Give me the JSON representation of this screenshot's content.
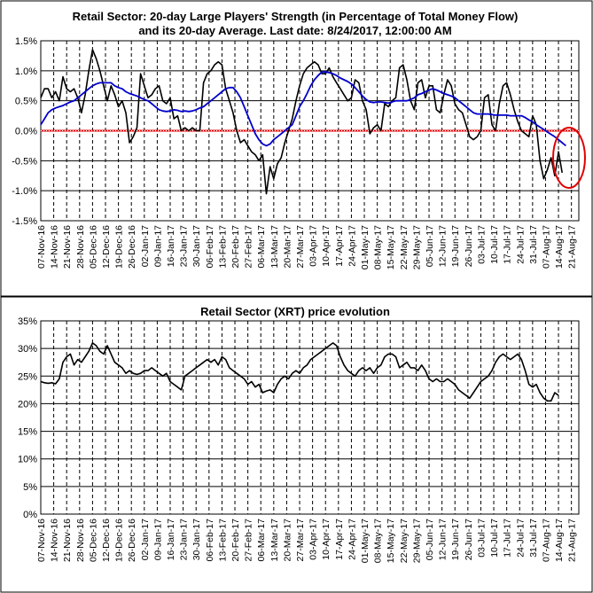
{
  "chart_data": [
    {
      "type": "line",
      "title": "Retail Sector: 20-day Large Players' Strength (in Percentage of Total Money Flow)",
      "subtitle": "and its 20-day Average. Last date: 8/24/2017, 12:00:00 AM",
      "ylim": [
        -1.5,
        1.5
      ],
      "yticks": [
        "-1.5%",
        "-1.0%",
        "-0.5%",
        "0.0%",
        "0.5%",
        "1.0%",
        "1.5%"
      ],
      "ytick_values": [
        -1.5,
        -1.0,
        -0.5,
        0.0,
        0.5,
        1.0,
        1.5
      ],
      "grid": true,
      "zero_line_color": "#e00000",
      "highlight_circle_color": "#e00000",
      "x_day_offsets": [
        0,
        2,
        4,
        6,
        8,
        10,
        12,
        14,
        16,
        18,
        20,
        22,
        24,
        26,
        28,
        30,
        32,
        34,
        36,
        38,
        40,
        42,
        44,
        46,
        48,
        50,
        52,
        54,
        56,
        58,
        60,
        62,
        64,
        66,
        68,
        70,
        72,
        74,
        76,
        78,
        80,
        82,
        84,
        86,
        88,
        90,
        92,
        94,
        96,
        98,
        100,
        102,
        104,
        106,
        108,
        110,
        112,
        114,
        116,
        118,
        120,
        122,
        124,
        126,
        128,
        130,
        132,
        134,
        136,
        138,
        140,
        142,
        144,
        146,
        148,
        150,
        152,
        154,
        156,
        158,
        160,
        162,
        164,
        166,
        168,
        170,
        172,
        174,
        176,
        178,
        180,
        182,
        184,
        186,
        188,
        190,
        192,
        194,
        196,
        198,
        200,
        202,
        204,
        206,
        208,
        210,
        212,
        214,
        216,
        218,
        220,
        222,
        224,
        226,
        228,
        230,
        232,
        234,
        236,
        238,
        240,
        242,
        244,
        246,
        248,
        250,
        252,
        254,
        256,
        258,
        260,
        262,
        264,
        266,
        268,
        270,
        272,
        274,
        276,
        278,
        280,
        282,
        284,
        286,
        288,
        290
      ],
      "series": [
        {
          "color": "#000000",
          "values": [
            0.55,
            0.7,
            0.7,
            0.55,
            0.65,
            0.5,
            0.9,
            0.7,
            0.65,
            0.7,
            0.55,
            0.3,
            0.6,
            1.0,
            1.35,
            1.2,
            1.0,
            0.75,
            0.5,
            0.75,
            0.6,
            0.4,
            0.5,
            0.3,
            -0.2,
            -0.1,
            0.05,
            0.95,
            0.75,
            0.55,
            0.6,
            0.7,
            0.75,
            0.5,
            0.45,
            0.55,
            0.2,
            0.25,
            0.0,
            0.05,
            0.0,
            0.05,
            0.0,
            0.0,
            0.8,
            0.95,
            1.0,
            1.1,
            1.15,
            1.1,
            0.7,
            0.5,
            0.3,
            0.0,
            -0.2,
            -0.15,
            -0.25,
            -0.35,
            -0.4,
            -0.5,
            -0.4,
            -1.05,
            -0.6,
            -0.8,
            -0.55,
            -0.45,
            -0.2,
            0.0,
            0.2,
            0.5,
            0.75,
            0.95,
            1.05,
            1.1,
            1.15,
            1.1,
            0.95,
            0.95,
            1.05,
            0.9,
            0.8,
            0.7,
            0.6,
            0.5,
            0.55,
            0.85,
            0.8,
            0.5,
            0.35,
            -0.05,
            0.05,
            0.1,
            0.0,
            0.45,
            0.4,
            0.5,
            0.55,
            1.05,
            1.1,
            0.85,
            0.5,
            0.35,
            0.8,
            0.85,
            0.55,
            0.75,
            0.75,
            0.35,
            0.3,
            0.6,
            0.85,
            0.75,
            0.45,
            0.35,
            0.3,
            0.1,
            -0.1,
            -0.15,
            -0.1,
            0.0,
            0.55,
            0.6,
            0.1,
            0.0,
            0.45,
            0.75,
            0.8,
            0.6,
            0.35,
            0.15,
            0.0,
            -0.05,
            -0.1,
            0.25,
            0.1,
            -0.5,
            -0.8,
            -0.65,
            -0.45,
            -0.75,
            -0.35,
            -0.7
          ]
        },
        {
          "color": "#0000cc",
          "values": [
            0.1,
            0.2,
            0.3,
            0.35,
            0.38,
            0.4,
            0.42,
            0.45,
            0.48,
            0.5,
            0.55,
            0.6,
            0.65,
            0.7,
            0.75,
            0.78,
            0.8,
            0.8,
            0.8,
            0.8,
            0.75,
            0.72,
            0.7,
            0.65,
            0.62,
            0.6,
            0.58,
            0.55,
            0.52,
            0.5,
            0.45,
            0.4,
            0.35,
            0.33,
            0.32,
            0.33,
            0.35,
            0.34,
            0.32,
            0.33,
            0.32,
            0.33,
            0.35,
            0.38,
            0.4,
            0.45,
            0.5,
            0.55,
            0.6,
            0.65,
            0.7,
            0.72,
            0.72,
            0.65,
            0.55,
            0.4,
            0.25,
            0.1,
            -0.05,
            -0.15,
            -0.22,
            -0.25,
            -0.22,
            -0.15,
            -0.1,
            -0.05,
            0.0,
            0.05,
            0.1,
            0.25,
            0.4,
            0.5,
            0.62,
            0.75,
            0.85,
            0.92,
            0.98,
            0.98,
            0.97,
            0.95,
            0.92,
            0.88,
            0.85,
            0.82,
            0.78,
            0.72,
            0.65,
            0.58,
            0.52,
            0.48,
            0.47,
            0.48,
            0.48,
            0.47,
            0.46,
            0.48,
            0.5,
            0.5,
            0.5,
            0.5,
            0.52,
            0.55,
            0.6,
            0.62,
            0.65,
            0.68,
            0.7,
            0.68,
            0.65,
            0.62,
            0.6,
            0.58,
            0.55,
            0.5,
            0.45,
            0.4,
            0.35,
            0.3,
            0.28,
            0.28,
            0.28,
            0.28,
            0.27,
            0.26,
            0.26,
            0.26,
            0.26,
            0.25,
            0.25,
            0.25,
            0.25,
            0.22,
            0.18,
            0.15,
            0.1,
            0.06,
            0.02,
            -0.02,
            -0.06,
            -0.1,
            -0.15,
            -0.2,
            -0.25
          ]
        }
      ]
    },
    {
      "type": "line",
      "title": "Retail Sector (XRT) price evolution",
      "ylim": [
        0,
        35
      ],
      "yticks": [
        "0%",
        "5%",
        "10%",
        "15%",
        "20%",
        "25%",
        "30%",
        "35%"
      ],
      "ytick_values": [
        0,
        5,
        10,
        15,
        20,
        25,
        30,
        35
      ],
      "grid": true,
      "x_day_offsets": [
        0,
        2,
        4,
        6,
        8,
        10,
        12,
        14,
        16,
        18,
        20,
        22,
        24,
        26,
        28,
        30,
        32,
        34,
        36,
        38,
        40,
        42,
        44,
        46,
        48,
        50,
        52,
        54,
        56,
        58,
        60,
        62,
        64,
        66,
        68,
        70,
        72,
        74,
        76,
        78,
        80,
        82,
        84,
        86,
        88,
        90,
        92,
        94,
        96,
        98,
        100,
        102,
        104,
        106,
        108,
        110,
        112,
        114,
        116,
        118,
        120,
        122,
        124,
        126,
        128,
        130,
        132,
        134,
        136,
        138,
        140,
        142,
        144,
        146,
        148,
        150,
        152,
        154,
        156,
        158,
        160,
        162,
        164,
        166,
        168,
        170,
        172,
        174,
        176,
        178,
        180,
        182,
        184,
        186,
        188,
        190,
        192,
        194,
        196,
        198,
        200,
        202,
        204,
        206,
        208,
        210,
        212,
        214,
        216,
        218,
        220,
        222,
        224,
        226,
        228,
        230,
        232,
        234,
        236,
        238,
        240,
        242,
        244,
        246,
        248,
        250,
        252,
        254,
        256,
        258,
        260,
        262,
        264,
        266,
        268,
        270,
        272,
        274,
        276,
        278,
        280,
        282,
        284,
        286,
        288,
        290
      ],
      "series": [
        {
          "color": "#000000",
          "values": [
            24.0,
            23.8,
            23.7,
            23.8,
            23.6,
            24.5,
            27.5,
            28.5,
            29.0,
            27.0,
            28.0,
            27.5,
            28.5,
            29.5,
            31.0,
            30.5,
            29.5,
            29.0,
            30.5,
            29.0,
            27.5,
            27.0,
            26.5,
            25.5,
            26.0,
            25.5,
            25.3,
            25.5,
            26.0,
            26.0,
            26.5,
            26.0,
            25.5,
            25.0,
            25.5,
            24.0,
            23.5,
            23.0,
            22.5,
            25.0,
            25.5,
            26.0,
            26.5,
            27.0,
            27.5,
            28.0,
            27.5,
            28.0,
            27.0,
            28.5,
            28.0,
            26.5,
            26.0,
            25.5,
            25.0,
            24.5,
            23.5,
            24.0,
            23.0,
            23.5,
            22.0,
            22.3,
            22.5,
            22.0,
            23.5,
            24.5,
            25.0,
            24.5,
            25.5,
            26.0,
            25.5,
            26.5,
            27.0,
            28.0,
            28.5,
            29.0,
            29.5,
            30.0,
            30.5,
            31.0,
            30.5,
            28.5,
            27.0,
            26.0,
            25.5,
            25.0,
            26.0,
            26.5,
            26.0,
            26.5,
            25.5,
            26.5,
            27.0,
            28.5,
            29.0,
            29.0,
            28.5,
            26.5,
            27.0,
            27.5,
            26.5,
            26.5,
            26.0,
            27.0,
            26.0,
            24.5,
            24.0,
            24.5,
            24.0,
            24.0,
            24.5,
            24.0,
            23.5,
            22.5,
            22.0,
            21.5,
            21.0,
            22.0,
            23.0,
            24.0,
            24.5,
            25.0,
            26.0,
            27.5,
            28.5,
            29.0,
            28.5,
            28.0,
            28.5,
            29.0,
            28.0,
            26.0,
            23.5,
            23.0,
            23.5,
            22.0,
            21.0,
            20.5,
            20.5,
            22.0,
            21.5
          ]
        }
      ]
    }
  ],
  "x_axis": {
    "tick_labels": [
      "07-Nov-16",
      "14-Nov-16",
      "21-Nov-16",
      "28-Nov-16",
      "05-Dec-16",
      "12-Dec-16",
      "19-Dec-16",
      "26-Dec-16",
      "02-Jan-17",
      "09-Jan-17",
      "16-Jan-17",
      "23-Jan-17",
      "30-Jan-17",
      "06-Feb-17",
      "13-Feb-17",
      "20-Feb-17",
      "27-Feb-17",
      "06-Mar-17",
      "13-Mar-17",
      "20-Mar-17",
      "27-Mar-17",
      "03-Apr-17",
      "10-Apr-17",
      "17-Apr-17",
      "24-Apr-17",
      "01-May-17",
      "08-May-17",
      "15-May-17",
      "22-May-17",
      "29-May-17",
      "05-Jun-17",
      "12-Jun-17",
      "19-Jun-17",
      "26-Jun-17",
      "03-Jul-17",
      "10-Jul-17",
      "17-Jul-17",
      "24-Jul-17",
      "31-Jul-17",
      "07-Aug-17",
      "14-Aug-17",
      "21-Aug-17"
    ],
    "tick_day_offsets": [
      0,
      7,
      14,
      21,
      28,
      35,
      42,
      49,
      56,
      63,
      70,
      77,
      84,
      91,
      98,
      105,
      112,
      119,
      126,
      133,
      140,
      147,
      154,
      161,
      168,
      175,
      182,
      189,
      196,
      203,
      210,
      217,
      224,
      231,
      238,
      245,
      252,
      259,
      266,
      273,
      280,
      287
    ]
  }
}
